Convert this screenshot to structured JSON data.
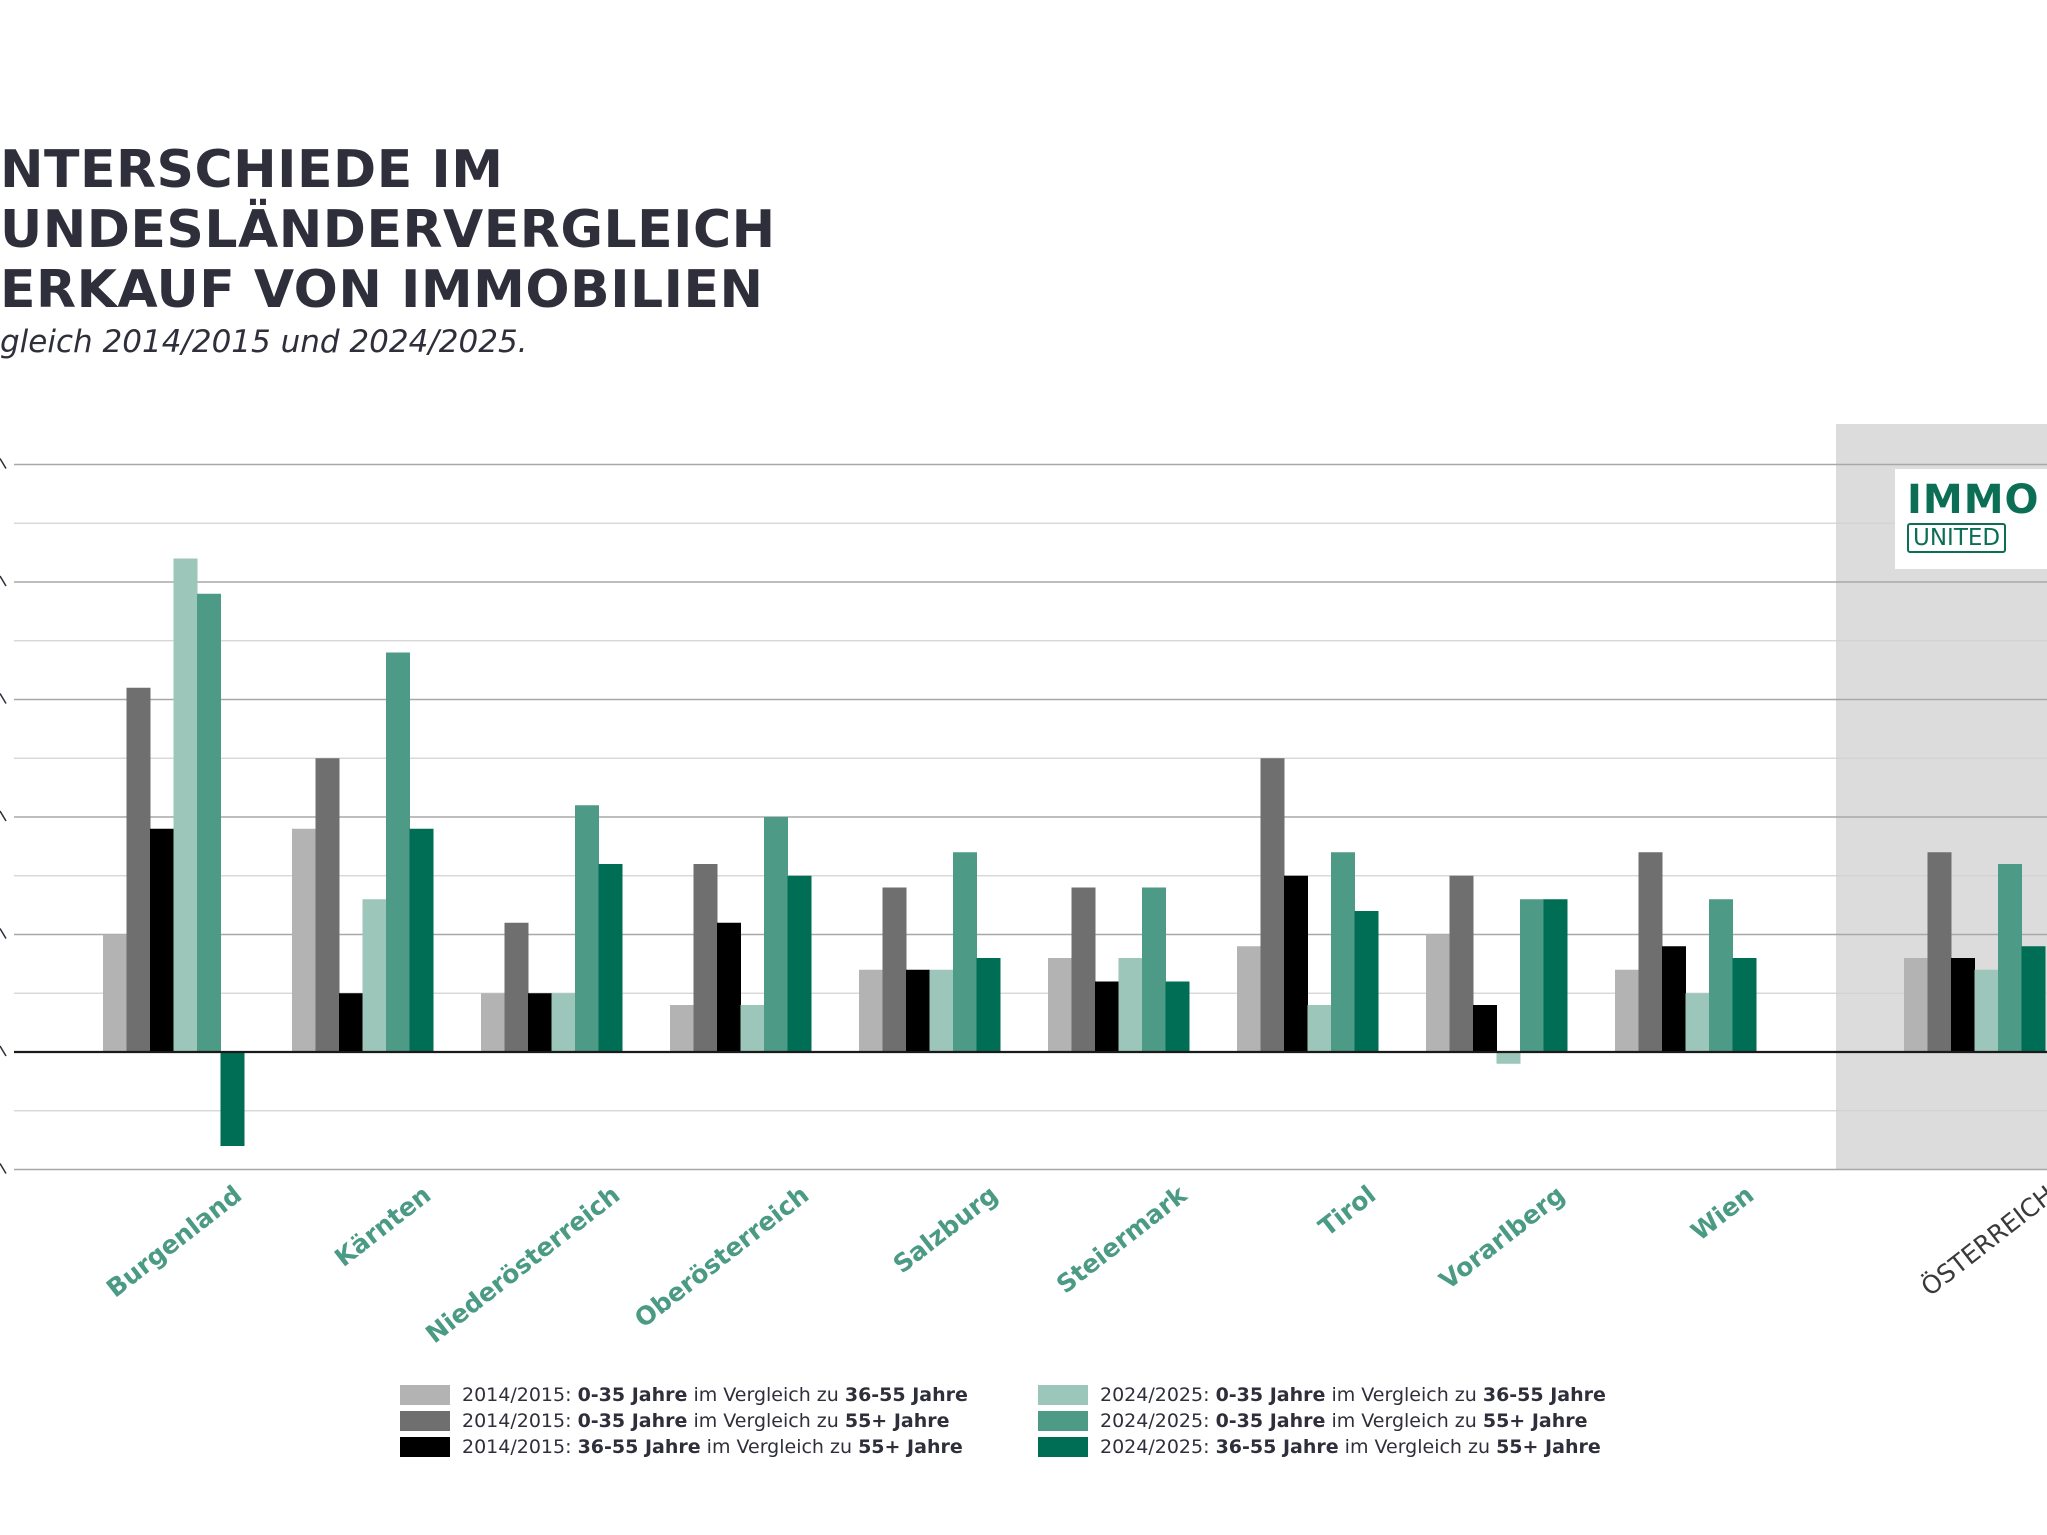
{
  "title_lines": [
    "NTERSCHIEDE IM",
    "UNDESLÄNDERVERGLEICH",
    "ERKAUF VON IMMOBILIEN"
  ],
  "subtitle": "gleich 2014/2015 und 2024/2025.",
  "logo": {
    "top": "IMMO",
    "bottom": "UNITED"
  },
  "colors": {
    "text_dark": "#2e2f3a",
    "region_label": "#4a9a84",
    "highlight_bg": "#dcdcdc",
    "series": [
      "#b3b3b3",
      "#6f6f6f",
      "#000000",
      "#9cc6b9",
      "#4d9a86",
      "#006e55"
    ]
  },
  "legend": [
    {
      "prefix": "2014/2015: ",
      "a": "0-35 Jahre",
      "mid": " im Vergleich zu ",
      "b": "36-55 Jahre"
    },
    {
      "prefix": "2014/2015: ",
      "a": "0-35 Jahre",
      "mid": " im Vergleich zu ",
      "b": "55+ Jahre"
    },
    {
      "prefix": "2014/2015: ",
      "a": "36-55 Jahre",
      "mid": " im Vergleich zu ",
      "b": "55+ Jahre"
    },
    {
      "prefix": "2024/2025: ",
      "a": "0-35 Jahre",
      "mid": " im Vergleich zu ",
      "b": "36-55 Jahre"
    },
    {
      "prefix": "2024/2025: ",
      "a": "0-35 Jahre",
      "mid": " im Vergleich zu ",
      "b": "55+ Jahre"
    },
    {
      "prefix": "2024/2025: ",
      "a": "36-55 Jahre",
      "mid": " im Vergleich zu ",
      "b": "55+ Jahre"
    }
  ],
  "chart_data": {
    "type": "bar",
    "categories": [
      "Burgenland",
      "Kärnten",
      "Niederösterreich",
      "Oberösterreich",
      "Salzburg",
      "Steiermark",
      "Tirol",
      "Vorarlberg",
      "Wien",
      "ÖSTERREICH"
    ],
    "highlight_category": "ÖSTERREICH",
    "ylim": [
      -1,
      5
    ],
    "grid": true,
    "legend_position": "bottom",
    "series": [
      {
        "name": "2014/2015: 0-35 Jahre im Vergleich zu 36-55 Jahre",
        "values": [
          1.0,
          1.9,
          0.5,
          0.4,
          0.7,
          0.8,
          0.9,
          1.0,
          0.7,
          0.8
        ]
      },
      {
        "name": "2014/2015: 0-35 Jahre im Vergleich zu 55+ Jahre",
        "values": [
          3.1,
          2.5,
          1.1,
          1.6,
          1.4,
          1.4,
          2.5,
          1.5,
          1.7,
          1.7
        ]
      },
      {
        "name": "2014/2015: 36-55 Jahre im Vergleich zu 55+ Jahre",
        "values": [
          1.9,
          0.5,
          0.5,
          1.1,
          0.7,
          0.6,
          1.5,
          0.4,
          0.9,
          0.8
        ]
      },
      {
        "name": "2024/2025: 0-35 Jahre im Vergleich zu 36-55 Jahre",
        "values": [
          4.2,
          1.3,
          0.5,
          0.4,
          0.7,
          0.8,
          0.4,
          -0.1,
          0.5,
          0.7
        ]
      },
      {
        "name": "2024/2025: 0-35 Jahre im Vergleich zu 55+ Jahre",
        "values": [
          3.9,
          3.4,
          2.1,
          2.0,
          1.7,
          1.4,
          1.7,
          1.3,
          1.3,
          1.6
        ]
      },
      {
        "name": "2024/2025: 36-55 Jahre im Vergleich zu 55+ Jahre",
        "values": [
          -0.8,
          1.9,
          1.6,
          1.5,
          0.8,
          0.6,
          1.2,
          1.3,
          0.8,
          0.9
        ]
      }
    ]
  }
}
